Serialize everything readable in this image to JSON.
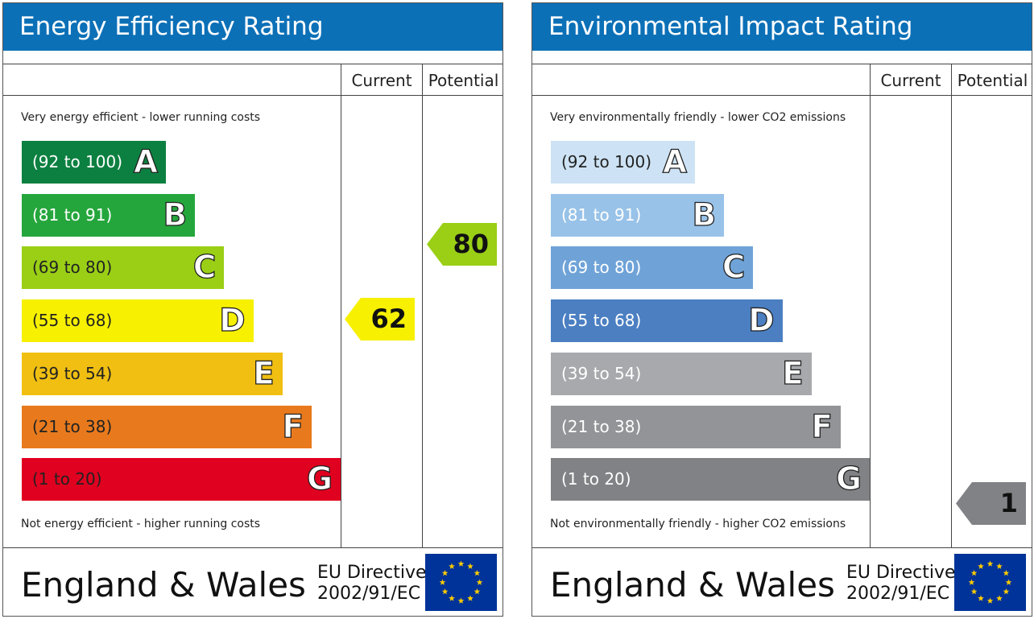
{
  "panels": [
    {
      "title": "Energy Efficiency Rating",
      "col_current": "Current",
      "col_potential": "Potential",
      "top_note": "Very energy efficient - lower running costs",
      "bottom_note": "Not energy efficient - higher running costs",
      "footer_region": "England & Wales",
      "footer_directive_1": "EU Directive",
      "footer_directive_2": "2002/91/EC"
    },
    {
      "title": "Environmental Impact Rating",
      "col_current": "Current",
      "col_potential": "Potential",
      "top_note": "Very environmentally friendly - lower CO2 emissions",
      "bottom_note": "Not environmentally friendly - higher CO2 emissions",
      "footer_region": "England & Wales",
      "footer_directive_1": "EU Directive",
      "footer_directive_2": "2002/91/EC"
    }
  ],
  "chart_data": [
    {
      "type": "table",
      "title": "Energy Efficiency Rating",
      "bands": [
        {
          "letter": "A",
          "range": "(92 to 100)",
          "min": 92,
          "max": 100,
          "color": "#0c8040"
        },
        {
          "letter": "B",
          "range": "(81 to 91)",
          "min": 81,
          "max": 91,
          "color": "#25a63c"
        },
        {
          "letter": "C",
          "range": "(69 to 80)",
          "min": 69,
          "max": 80,
          "color": "#9acf16"
        },
        {
          "letter": "D",
          "range": "(55 to 68)",
          "min": 55,
          "max": 68,
          "color": "#f7f000"
        },
        {
          "letter": "E",
          "range": "(39 to 54)",
          "min": 39,
          "max": 54,
          "color": "#f0bf12"
        },
        {
          "letter": "F",
          "range": "(21 to 38)",
          "min": 21,
          "max": 38,
          "color": "#e87a1d"
        },
        {
          "letter": "G",
          "range": "(1 to 20)",
          "min": 1,
          "max": 20,
          "color": "#e0001f"
        }
      ],
      "current": {
        "value": 62,
        "band": "D",
        "color": "#f7f000"
      },
      "potential": {
        "value": 80,
        "band": "C",
        "color": "#9acf16"
      }
    },
    {
      "type": "table",
      "title": "Environmental Impact Rating",
      "bands": [
        {
          "letter": "A",
          "range": "(92 to 100)",
          "min": 92,
          "max": 100,
          "color": "#cde3f5"
        },
        {
          "letter": "B",
          "range": "(81 to 91)",
          "min": 81,
          "max": 91,
          "color": "#98c2e8"
        },
        {
          "letter": "C",
          "range": "(69 to 80)",
          "min": 69,
          "max": 80,
          "color": "#6fa3d8"
        },
        {
          "letter": "D",
          "range": "(55 to 68)",
          "min": 55,
          "max": 68,
          "color": "#4b7fc2"
        },
        {
          "letter": "E",
          "range": "(39 to 54)",
          "min": 39,
          "max": 54,
          "color": "#a7a9ac"
        },
        {
          "letter": "F",
          "range": "(21 to 38)",
          "min": 21,
          "max": 38,
          "color": "#929497"
        },
        {
          "letter": "G",
          "range": "(1 to 20)",
          "min": 1,
          "max": 20,
          "color": "#808285"
        }
      ],
      "current": null,
      "potential": {
        "value": 1,
        "band": "G",
        "color": "#808285"
      }
    }
  ]
}
